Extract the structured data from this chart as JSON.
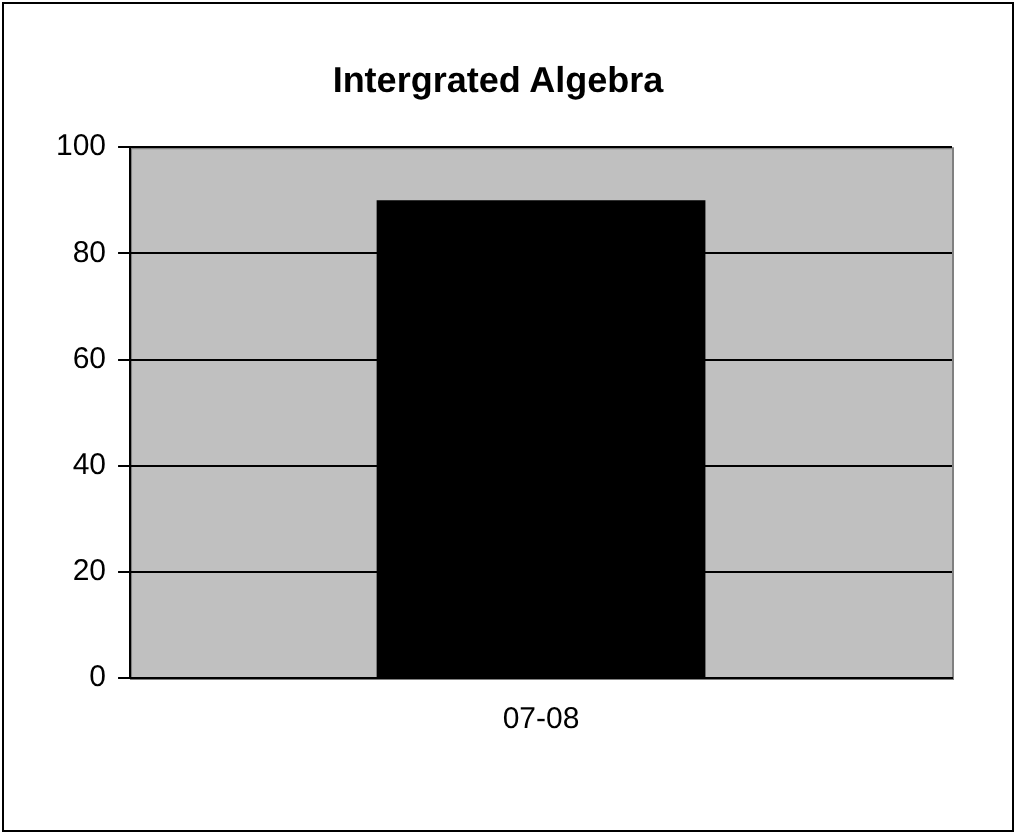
{
  "chart_data": {
    "type": "bar",
    "title": "Intergrated Algebra",
    "categories": [
      "07-08"
    ],
    "values": [
      90
    ],
    "color": "#000000",
    "ylim": [
      0,
      100
    ],
    "yticks": [
      0,
      20,
      40,
      60,
      80,
      100
    ],
    "grid": "y",
    "legend": false
  }
}
